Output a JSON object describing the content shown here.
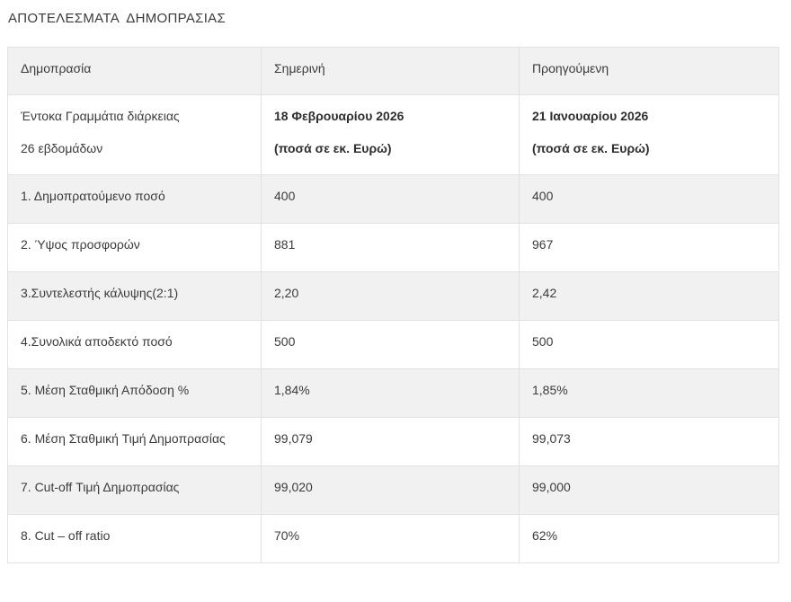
{
  "page_title": "ΑΠΟΤΕΛΕΣΜΑΤΑ  ΔΗΜΟΠΡΑΣΙΑΣ",
  "table": {
    "headers": [
      "Δημοπρασία",
      "Σημερινή",
      "Προηγούμενη"
    ],
    "subheader": {
      "label_line1": "Έντοκα Γραμμάτια διάρκειας",
      "label_line2": "26 εβδομάδων",
      "current_line1": "18 Φεβρουαρίου 2026",
      "current_line2": "(ποσά σε εκ. Ευρώ)",
      "previous_line1": "21 Ιανουαρίου 2026",
      "previous_line2": "(ποσά σε εκ. Ευρώ)"
    },
    "rows": [
      {
        "label": "1. Δημοπρατούμενο ποσό",
        "current": "400",
        "previous": "400"
      },
      {
        "label": "2. Ύψος προσφορών",
        "current": "881",
        "previous": "967"
      },
      {
        "label": "3.Συντελεστής κάλυψης(2:1)",
        "current": "2,20",
        "previous": "2,42"
      },
      {
        "label": "4.Συνολικά αποδεκτό ποσό",
        "current": "500",
        "previous": "500"
      },
      {
        "label": "5. Μέση Σταθμική Απόδοση %",
        "current": "1,84%",
        "previous": "1,85%"
      },
      {
        "label": "6. Μέση Σταθμική Τιμή Δημοπρασίας",
        "current": "99,079",
        "previous": "99,073"
      },
      {
        "label": "7. Cut-off Τιμή Δημοπρασίας",
        "current": "99,020",
        "previous": "99,000"
      },
      {
        "label": "8. Cut – off ratio",
        "current": "70%",
        "previous": "62%"
      }
    ]
  },
  "colors": {
    "stripe_background": "#f1f1f1",
    "border": "#e2e2e2",
    "text": "#3b3b3b"
  }
}
